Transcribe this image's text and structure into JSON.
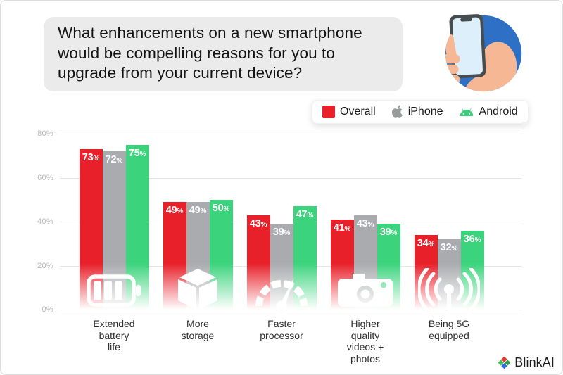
{
  "question_bubble": {
    "text": "What enhancements on a new smartphone would be compelling reasons for you to upgrade from your current device?"
  },
  "legend": {
    "items": [
      {
        "label": "Overall",
        "icon": "red-swatch",
        "color": "#e8202a"
      },
      {
        "label": "iPhone",
        "icon": "apple-logo",
        "color": "#97999b"
      },
      {
        "label": "Android",
        "icon": "android-logo",
        "color": "#3ecd7a"
      }
    ]
  },
  "chart_data": {
    "type": "bar",
    "title": "What enhancements on a new smartphone would be compelling reasons for you to upgrade from your current device?",
    "categories": [
      "Extended battery life",
      "More storage",
      "Faster processor",
      "Higher quality videos + photos",
      "Being 5G equipped"
    ],
    "category_label_lines": [
      [
        "Extended",
        "battery",
        "life"
      ],
      [
        "More",
        "storage"
      ],
      [
        "Faster",
        "processor"
      ],
      [
        "Higher",
        "quality",
        "videos +",
        "photos"
      ],
      [
        "Being 5G",
        "equipped"
      ]
    ],
    "category_icons": [
      "battery-icon",
      "storage-box-icon",
      "speedometer-icon",
      "camera-icon",
      "antenna-5g-icon"
    ],
    "series": [
      {
        "name": "Overall",
        "color": "#e8202a",
        "values": [
          73,
          49,
          43,
          41,
          34
        ]
      },
      {
        "name": "iPhone",
        "color": "#a9abae",
        "values": [
          72,
          49,
          39,
          43,
          32
        ]
      },
      {
        "name": "Android",
        "color": "#3bd47c",
        "values": [
          75,
          50,
          47,
          39,
          36
        ]
      }
    ],
    "value_suffix": "%",
    "y_ticks": [
      80,
      60,
      40,
      20,
      0
    ],
    "y_tick_suffix": "%",
    "ylim": [
      0,
      80
    ],
    "grid": true,
    "legend_position": "top-right"
  },
  "branding": {
    "name": "BlinkAI"
  }
}
